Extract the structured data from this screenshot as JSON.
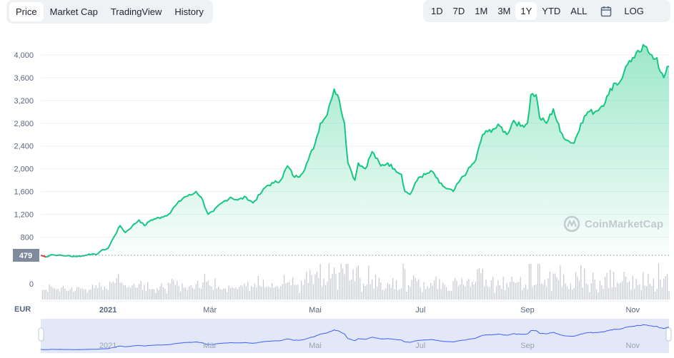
{
  "tabs": [
    {
      "label": "Price",
      "active": true
    },
    {
      "label": "Market Cap",
      "active": false
    },
    {
      "label": "TradingView",
      "active": false
    },
    {
      "label": "History",
      "active": false
    }
  ],
  "ranges": [
    {
      "label": "1D",
      "active": false
    },
    {
      "label": "7D",
      "active": false
    },
    {
      "label": "1M",
      "active": false
    },
    {
      "label": "3M",
      "active": false
    },
    {
      "label": "1Y",
      "active": true
    },
    {
      "label": "YTD",
      "active": false
    },
    {
      "label": "ALL",
      "active": false
    }
  ],
  "calendar_icon": "calendar-icon",
  "log_label": "LOG",
  "currency_label": "EUR",
  "current_price_label": "479",
  "watermark": "CoinMarketCap",
  "colors": {
    "line": "#16c784",
    "start_segment": "#ea3943",
    "axis_badge": "#808a9d",
    "volume": "#c4c8cf",
    "navigator_fill": "#e3e8f8",
    "navigator_line": "#3861fb"
  },
  "chart_data": {
    "type": "area",
    "title": "",
    "xlabel": "",
    "ylabel": "",
    "unit": "EUR",
    "ylim": [
      479,
      4200
    ],
    "yticks": [
      800,
      1200,
      1600,
      2000,
      2400,
      2800,
      3200,
      3600,
      4000
    ],
    "ytick_labels": [
      "800",
      "1,200",
      "1,600",
      "2,000",
      "2,400",
      "2,800",
      "3,200",
      "3,600",
      "4,000"
    ],
    "volume_tick_label": "0",
    "reference_line": 479,
    "x_start": "2020-11-23",
    "x_end": "2021-11-22",
    "month_labels": [
      {
        "label": "2021",
        "date": "2021-01-01"
      },
      {
        "label": "Mär",
        "date": "2021-03-01"
      },
      {
        "label": "Mai",
        "date": "2021-05-01"
      },
      {
        "label": "Jul",
        "date": "2021-07-01"
      },
      {
        "label": "Sep",
        "date": "2021-09-01"
      },
      {
        "label": "Nov",
        "date": "2021-11-01"
      }
    ],
    "series": [
      {
        "points": [
          [
            "2020-11-23",
            480
          ],
          [
            "2020-11-26",
            450
          ],
          [
            "2020-11-29",
            490
          ],
          [
            "2020-12-03",
            480
          ],
          [
            "2020-12-08",
            470
          ],
          [
            "2020-12-13",
            460
          ],
          [
            "2020-12-18",
            470
          ],
          [
            "2020-12-21",
            500
          ],
          [
            "2020-12-25",
            490
          ],
          [
            "2020-12-28",
            560
          ],
          [
            "2021-01-01",
            600
          ],
          [
            "2021-01-04",
            780
          ],
          [
            "2021-01-08",
            1000
          ],
          [
            "2021-01-11",
            880
          ],
          [
            "2021-01-15",
            990
          ],
          [
            "2021-01-19",
            1100
          ],
          [
            "2021-01-22",
            1000
          ],
          [
            "2021-01-26",
            1100
          ],
          [
            "2021-02-01",
            1150
          ],
          [
            "2021-02-05",
            1200
          ],
          [
            "2021-02-09",
            1350
          ],
          [
            "2021-02-14",
            1500
          ],
          [
            "2021-02-19",
            1550
          ],
          [
            "2021-02-21",
            1600
          ],
          [
            "2021-02-24",
            1500
          ],
          [
            "2021-02-28",
            1200
          ],
          [
            "2021-03-03",
            1250
          ],
          [
            "2021-03-08",
            1400
          ],
          [
            "2021-03-13",
            1500
          ],
          [
            "2021-03-17",
            1450
          ],
          [
            "2021-03-22",
            1500
          ],
          [
            "2021-03-26",
            1400
          ],
          [
            "2021-03-30",
            1550
          ],
          [
            "2021-04-03",
            1700
          ],
          [
            "2021-04-07",
            1750
          ],
          [
            "2021-04-11",
            1800
          ],
          [
            "2021-04-15",
            2050
          ],
          [
            "2021-04-19",
            1850
          ],
          [
            "2021-04-23",
            1900
          ],
          [
            "2021-04-27",
            2150
          ],
          [
            "2021-05-01",
            2450
          ],
          [
            "2021-05-04",
            2800
          ],
          [
            "2021-05-07",
            2900
          ],
          [
            "2021-05-09",
            3100
          ],
          [
            "2021-05-12",
            3400
          ],
          [
            "2021-05-15",
            3200
          ],
          [
            "2021-05-18",
            2800
          ],
          [
            "2021-05-20",
            2100
          ],
          [
            "2021-05-22",
            1950
          ],
          [
            "2021-05-24",
            1800
          ],
          [
            "2021-05-26",
            2100
          ],
          [
            "2021-05-30",
            2000
          ],
          [
            "2021-06-03",
            2300
          ],
          [
            "2021-06-08",
            2050
          ],
          [
            "2021-06-12",
            2100
          ],
          [
            "2021-06-16",
            2000
          ],
          [
            "2021-06-20",
            1900
          ],
          [
            "2021-06-22",
            1600
          ],
          [
            "2021-06-25",
            1550
          ],
          [
            "2021-06-30",
            1850
          ],
          [
            "2021-07-04",
            1900
          ],
          [
            "2021-07-08",
            1950
          ],
          [
            "2021-07-12",
            1750
          ],
          [
            "2021-07-16",
            1650
          ],
          [
            "2021-07-20",
            1600
          ],
          [
            "2021-07-24",
            1800
          ],
          [
            "2021-07-28",
            1950
          ],
          [
            "2021-08-02",
            2150
          ],
          [
            "2021-08-06",
            2600
          ],
          [
            "2021-08-09",
            2650
          ],
          [
            "2021-08-12",
            2700
          ],
          [
            "2021-08-16",
            2750
          ],
          [
            "2021-08-20",
            2600
          ],
          [
            "2021-08-24",
            2850
          ],
          [
            "2021-08-28",
            2750
          ],
          [
            "2021-09-01",
            2800
          ],
          [
            "2021-09-03",
            3300
          ],
          [
            "2021-09-06",
            3300
          ],
          [
            "2021-09-08",
            2900
          ],
          [
            "2021-09-12",
            2800
          ],
          [
            "2021-09-16",
            3050
          ],
          [
            "2021-09-20",
            2650
          ],
          [
            "2021-09-24",
            2500
          ],
          [
            "2021-09-28",
            2450
          ],
          [
            "2021-10-02",
            2800
          ],
          [
            "2021-10-06",
            3000
          ],
          [
            "2021-10-10",
            3000
          ],
          [
            "2021-10-14",
            3100
          ],
          [
            "2021-10-18",
            3300
          ],
          [
            "2021-10-21",
            3500
          ],
          [
            "2021-10-24",
            3500
          ],
          [
            "2021-10-27",
            3700
          ],
          [
            "2021-10-30",
            3900
          ],
          [
            "2021-11-02",
            3950
          ],
          [
            "2021-11-05",
            4050
          ],
          [
            "2021-11-08",
            4150
          ],
          [
            "2021-11-10",
            4050
          ],
          [
            "2021-11-12",
            4000
          ],
          [
            "2021-11-15",
            3950
          ],
          [
            "2021-11-17",
            3700
          ],
          [
            "2021-11-19",
            3600
          ],
          [
            "2021-11-22",
            3800
          ]
        ]
      }
    ]
  }
}
